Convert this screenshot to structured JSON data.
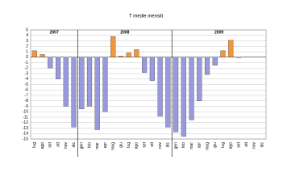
{
  "chart_data": {
    "type": "bar",
    "title": "T medie mensili",
    "groups": [
      {
        "name": "2007",
        "categories": [
          "lug",
          "ago",
          "set",
          "ott",
          "nov",
          "dic"
        ],
        "values": [
          1.2,
          0.5,
          -2,
          -4,
          -9,
          -12.8
        ]
      },
      {
        "name": "2008",
        "categories": [
          "gen",
          "feb",
          "mar",
          "apr",
          "mag",
          "giu",
          "lug",
          "ago",
          "set",
          "ott",
          "nov",
          "dic"
        ],
        "values": [
          -9.5,
          -9,
          -13.3,
          -10,
          3.8,
          0.2,
          0.8,
          1.4,
          -2.8,
          -4.3,
          -10.8,
          -12.8
        ]
      },
      {
        "name": "2009",
        "categories": [
          "gen",
          "feb",
          "mar",
          "apr",
          "mag",
          "giu",
          "lug",
          "ago",
          "set",
          "ott",
          "nov",
          "dic"
        ],
        "values": [
          -13.7,
          -14.5,
          -11.5,
          -8,
          -3.2,
          -1.5,
          1.2,
          3.1,
          -0.1,
          null,
          null,
          null
        ]
      }
    ],
    "positive_color": "#f0963c",
    "negative_color": "#9999dd",
    "ylim": [
      -15,
      5
    ],
    "yticks": [
      -15,
      -14,
      -13,
      -12,
      -11,
      -10,
      -9,
      -8,
      -7,
      -6,
      -5,
      -4,
      -3,
      -2,
      -1,
      0,
      1,
      2,
      3,
      4,
      5
    ],
    "grid": true
  }
}
